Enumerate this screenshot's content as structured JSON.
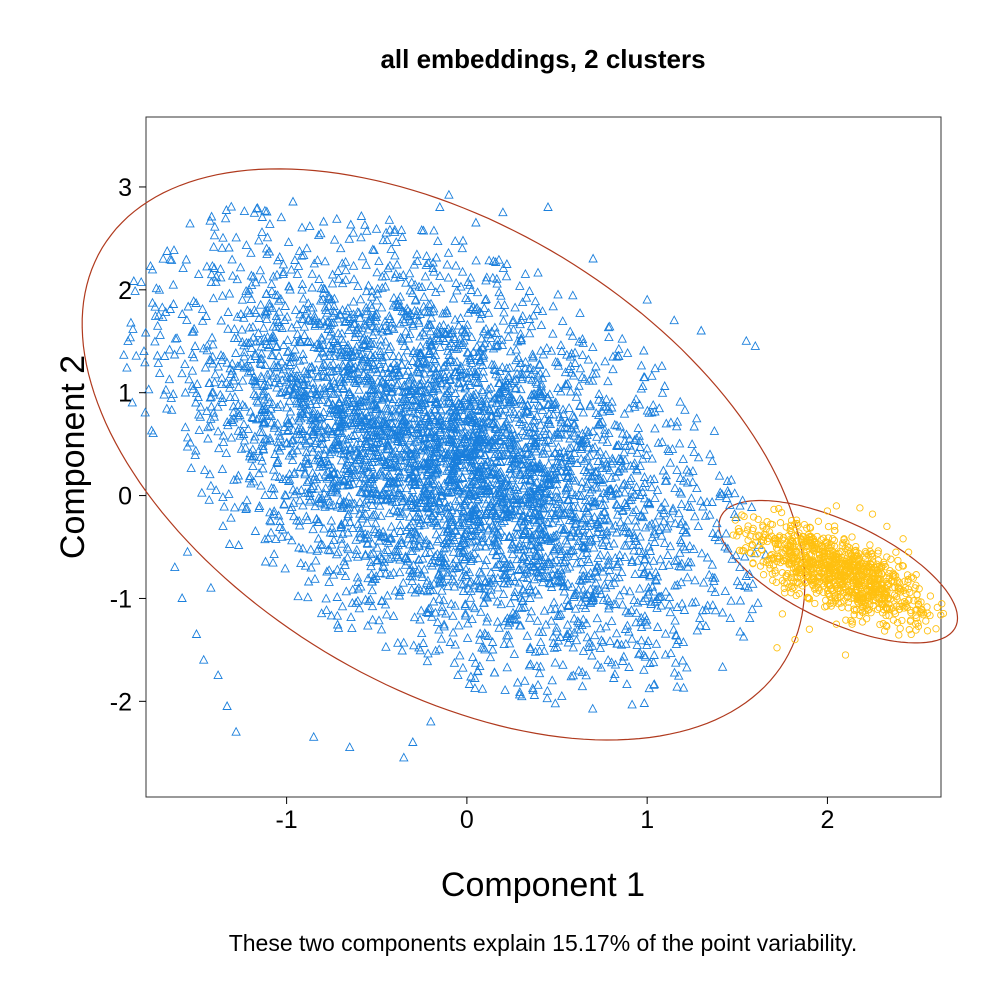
{
  "chart_data": {
    "type": "scatter",
    "title": "all embeddings, 2 clusters",
    "xlabel": "Component 1",
    "ylabel": "Component 2",
    "caption": "These two components explain 15.17% of the point variability.",
    "xlim": [
      -1.78,
      2.63
    ],
    "ylim": [
      -2.93,
      3.68
    ],
    "xticks": [
      -1,
      0,
      1,
      2
    ],
    "yticks": [
      -2,
      -1,
      0,
      1,
      2,
      3
    ],
    "grid": false,
    "legend": "none",
    "clusters": [
      {
        "marker": "triangle",
        "color": "#1a7fdc",
        "ellipse_color": "#b03a1e",
        "ellipse": {
          "center": [
            -0.13,
            0.4
          ],
          "semi_axes": [
            1.65,
            3.0
          ],
          "rotation_deg": 27
        },
        "point_count": 5000,
        "points": [
          [
            -1.62,
            -0.7
          ],
          [
            -1.58,
            -1.0
          ],
          [
            -1.55,
            -0.55
          ],
          [
            -1.5,
            -1.35
          ],
          [
            -1.46,
            -1.6
          ],
          [
            -1.42,
            -0.9
          ],
          [
            -1.38,
            -1.75
          ],
          [
            -1.33,
            -2.05
          ],
          [
            -1.28,
            -2.3
          ],
          [
            -1.25,
            0.45
          ],
          [
            -1.1,
            0.95
          ],
          [
            -1.05,
            1.25
          ],
          [
            -0.95,
            1.8
          ],
          [
            -0.82,
            2.1
          ],
          [
            -0.7,
            2.4
          ],
          [
            -0.63,
            2.55
          ],
          [
            -0.4,
            2.58
          ],
          [
            -0.15,
            2.8
          ],
          [
            -0.1,
            2.92
          ],
          [
            0.05,
            2.65
          ],
          [
            0.2,
            2.75
          ],
          [
            0.45,
            2.8
          ],
          [
            0.7,
            2.3
          ],
          [
            1.0,
            1.9
          ],
          [
            1.15,
            1.7
          ],
          [
            1.3,
            1.6
          ],
          [
            1.55,
            1.5
          ],
          [
            1.6,
            1.45
          ],
          [
            1.2,
            0.35
          ],
          [
            0.9,
            -0.05
          ],
          [
            0.55,
            -0.6
          ],
          [
            0.35,
            -1.0
          ],
          [
            0.25,
            -1.2
          ],
          [
            0.1,
            -1.5
          ],
          [
            -0.05,
            -1.75
          ],
          [
            -0.2,
            -2.2
          ],
          [
            -0.3,
            -2.4
          ],
          [
            -0.35,
            -2.55
          ],
          [
            -0.65,
            -2.45
          ],
          [
            -0.85,
            -2.35
          ]
        ]
      },
      {
        "marker": "circle",
        "color": "#ffc010",
        "ellipse_color": "#b03a1e",
        "ellipse": {
          "center": [
            2.06,
            -0.74
          ],
          "semi_axes": [
            0.4,
            0.87
          ],
          "rotation_deg": 43
        },
        "point_count": 1000,
        "points": [
          [
            1.72,
            -1.48
          ],
          [
            1.75,
            -1.15
          ],
          [
            1.8,
            -0.88
          ],
          [
            1.8,
            -0.55
          ],
          [
            1.82,
            -1.4
          ],
          [
            1.88,
            -0.45
          ],
          [
            1.9,
            -1.3
          ],
          [
            1.95,
            -0.25
          ],
          [
            2.0,
            -0.15
          ],
          [
            2.05,
            -1.25
          ],
          [
            2.05,
            -0.1
          ],
          [
            2.1,
            -1.55
          ],
          [
            2.18,
            -0.12
          ],
          [
            2.25,
            -0.18
          ],
          [
            2.33,
            -0.3
          ],
          [
            2.38,
            -0.55
          ],
          [
            2.42,
            -0.42
          ],
          [
            2.45,
            -0.55
          ],
          [
            2.3,
            -0.85
          ],
          [
            2.2,
            -1.0
          ]
        ]
      }
    ]
  }
}
